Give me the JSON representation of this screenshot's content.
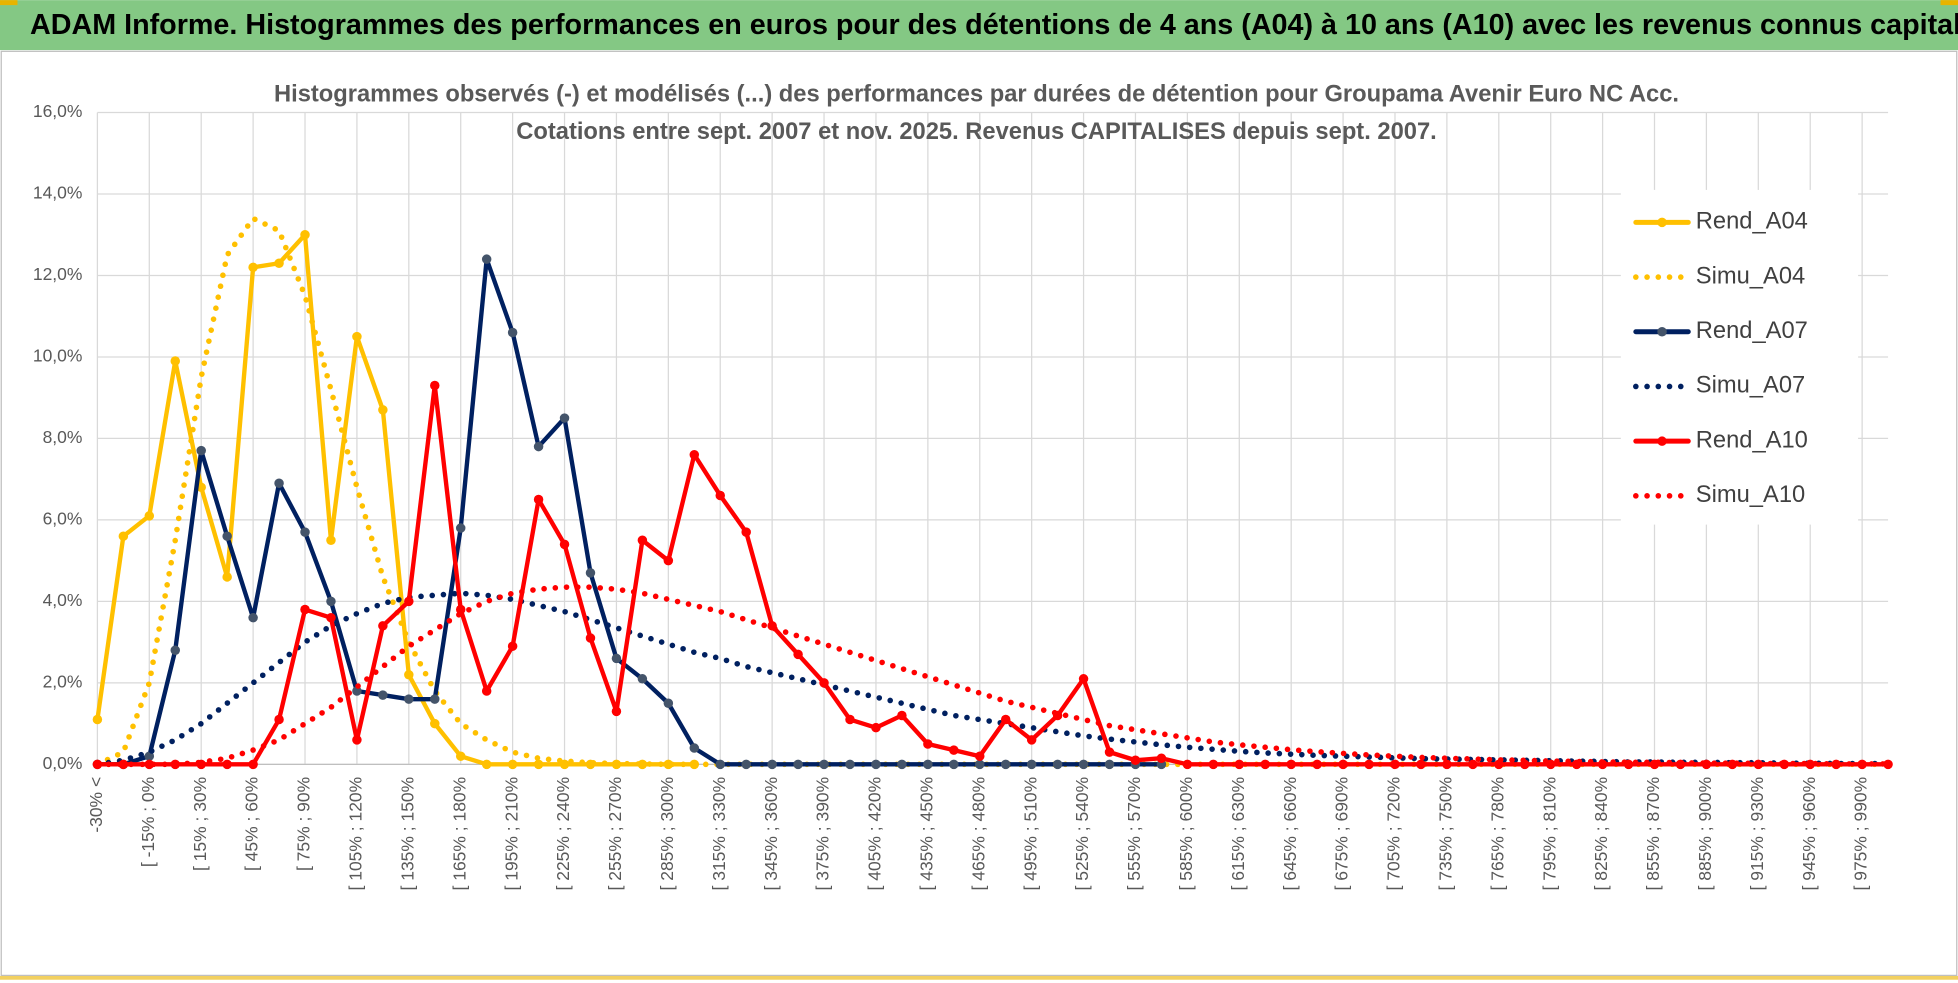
{
  "header": {
    "title": "ADAM Informe. Histogrammes des performances en euros pour des détentions de 4 ans (A04) à 10 ans (A10) avec les revenus connus capitalisés"
  },
  "chart_data": {
    "type": "line",
    "title": "Histogrammes observés (-) et modélisés (...) des performances par durées de détention pour Groupama Avenir Euro NC Acc.",
    "subtitle": "Cotations entre sept. 2007 et nov. 2025. Revenus CAPITALISES depuis sept. 2007.",
    "categories": [
      "-30% <",
      null,
      "[ -15% ; 0%",
      null,
      "[ 15% ; 30%",
      null,
      "[ 45% ; 60%",
      null,
      "[ 75% ; 90%",
      null,
      "[ 105% ; 120%",
      null,
      "[ 135% ; 150%",
      null,
      "[ 165% ; 180%",
      null,
      "[ 195% ; 210%",
      null,
      "[ 225% ; 240%",
      null,
      "[ 255% ; 270%",
      null,
      "[ 285% ; 300%",
      null,
      "[ 315% ; 330%",
      null,
      "[ 345% ; 360%",
      null,
      "[ 375% ; 390%",
      null,
      "[ 405% ; 420%",
      null,
      "[ 435% ; 450%",
      null,
      "[ 465% ; 480%",
      null,
      "[ 495% ; 510%",
      null,
      "[ 525% ; 540%",
      null,
      "[ 555% ; 570%",
      null,
      "[ 585% ; 600%",
      null,
      "[ 615% ; 630%",
      null,
      "[ 645% ; 660%",
      null,
      "[ 675% ; 690%",
      null,
      "[ 705% ; 720%",
      null,
      "[ 735% ; 750%",
      null,
      "[ 765% ; 780%",
      null,
      "[ 795% ; 810%",
      null,
      "[ 825% ; 840%",
      null,
      "[ 855% ; 870%",
      null,
      "[ 885% ; 900%",
      null,
      "[ 915% ; 930%",
      null,
      "[ 945% ; 960%",
      null,
      "[ 975% ; 990%",
      null
    ],
    "series": [
      {
        "name": "Rend_A04",
        "color": "#FFC000",
        "style": "solid",
        "values": [
          1.1,
          5.6,
          6.1,
          9.9,
          6.8,
          4.6,
          12.2,
          12.3,
          13.0,
          5.5,
          10.5,
          8.7,
          2.2,
          1.0,
          0.2,
          0,
          0,
          0,
          0,
          0,
          0,
          0,
          0,
          0,
          null,
          null,
          null,
          null,
          null,
          null,
          null,
          null,
          null,
          null,
          null,
          null,
          null,
          null,
          null,
          null,
          null,
          null,
          null,
          null,
          null,
          null,
          null,
          null,
          null,
          null,
          null,
          null,
          null,
          null,
          null,
          null,
          null,
          null,
          null,
          null,
          null,
          null,
          null,
          null,
          null,
          null,
          null,
          null,
          null,
          null
        ]
      },
      {
        "name": "Simu_A04",
        "color": "#FFC000",
        "style": "dotted",
        "values": [
          0,
          0.3,
          2.0,
          5.5,
          9.5,
          12.5,
          13.4,
          13.1,
          11.5,
          9.2,
          6.8,
          4.6,
          3.0,
          1.8,
          1.0,
          0.6,
          0.3,
          0.15,
          0.08,
          0.04,
          0.02,
          0.01,
          0,
          0,
          0,
          0,
          0,
          0,
          0,
          0,
          0,
          0,
          0,
          0,
          0,
          0,
          0,
          0,
          0,
          0,
          0,
          0,
          0,
          0,
          0,
          0,
          0,
          0,
          0,
          0,
          0,
          0,
          0,
          0,
          0,
          0,
          0,
          0,
          0,
          0,
          0,
          0,
          0,
          0,
          0,
          0,
          0,
          0,
          0,
          0
        ]
      },
      {
        "name": "Rend_A07",
        "color": "#002060",
        "style": "solid",
        "values": [
          0,
          0,
          0.2,
          2.8,
          7.7,
          5.6,
          3.6,
          6.9,
          5.7,
          4.0,
          1.8,
          1.7,
          1.6,
          1.6,
          5.8,
          12.4,
          10.6,
          7.8,
          8.5,
          4.7,
          2.6,
          2.1,
          1.5,
          0.4,
          0,
          0,
          0,
          0,
          0,
          0,
          0,
          0,
          0,
          0,
          0,
          0,
          0,
          0,
          0,
          0,
          0,
          0,
          null,
          null,
          null,
          null,
          null,
          null,
          null,
          null,
          null,
          null,
          null,
          null,
          null,
          null,
          null,
          null,
          null,
          null,
          null,
          null,
          null,
          null,
          null,
          null,
          null,
          null,
          null,
          null
        ]
      },
      {
        "name": "Simu_A07",
        "color": "#002060",
        "style": "dotted",
        "values": [
          0,
          0.1,
          0.3,
          0.6,
          1.0,
          1.5,
          2.0,
          2.5,
          3.0,
          3.4,
          3.7,
          3.95,
          4.1,
          4.15,
          4.2,
          4.15,
          4.05,
          3.9,
          3.75,
          3.55,
          3.35,
          3.15,
          2.95,
          2.75,
          2.6,
          2.4,
          2.25,
          2.1,
          1.95,
          1.8,
          1.65,
          1.5,
          1.35,
          1.2,
          1.1,
          1.0,
          0.9,
          0.8,
          0.7,
          0.62,
          0.55,
          0.48,
          0.42,
          0.37,
          0.32,
          0.28,
          0.25,
          0.22,
          0.2,
          0.18,
          0.16,
          0.14,
          0.13,
          0.12,
          0.11,
          0.1,
          0.09,
          0.08,
          0.07,
          0.06,
          0.06,
          0.05,
          0.05,
          0.04,
          0.04,
          0.03,
          0.03,
          0.02,
          0.02,
          0.02
        ]
      },
      {
        "name": "Rend_A10",
        "color": "#FF0000",
        "style": "solid",
        "values": [
          0,
          0,
          0,
          0,
          0,
          0,
          0,
          1.1,
          3.8,
          3.6,
          0.6,
          3.4,
          4.0,
          9.3,
          3.8,
          1.8,
          2.9,
          6.5,
          5.4,
          3.1,
          1.3,
          5.5,
          5.0,
          7.6,
          6.6,
          5.7,
          3.4,
          2.7,
          2.0,
          1.1,
          0.9,
          1.2,
          0.5,
          0.35,
          0.2,
          1.1,
          0.6,
          1.2,
          2.1,
          0.3,
          0.1,
          0.15,
          0,
          0,
          0,
          0,
          0,
          0,
          0,
          0,
          0,
          0,
          0,
          0,
          0,
          0,
          0,
          0,
          0,
          0,
          0,
          0,
          0,
          0,
          0,
          0,
          0,
          0,
          0,
          0
        ]
      },
      {
        "name": "Simu_A10",
        "color": "#FF0000",
        "style": "dotted",
        "values": [
          0,
          0,
          0,
          0,
          0.05,
          0.15,
          0.35,
          0.6,
          1.0,
          1.4,
          1.9,
          2.4,
          2.9,
          3.3,
          3.7,
          4.0,
          4.2,
          4.3,
          4.35,
          4.35,
          4.3,
          4.2,
          4.05,
          3.9,
          3.75,
          3.55,
          3.35,
          3.15,
          2.95,
          2.75,
          2.55,
          2.35,
          2.15,
          1.95,
          1.75,
          1.55,
          1.4,
          1.25,
          1.1,
          0.95,
          0.85,
          0.75,
          0.65,
          0.55,
          0.48,
          0.42,
          0.36,
          0.31,
          0.27,
          0.23,
          0.2,
          0.17,
          0.15,
          0.13,
          0.11,
          0.1,
          0.08,
          0.07,
          0.06,
          0.05,
          0.05,
          0.04,
          0.03,
          0.03,
          0.02,
          0.02,
          0.02,
          0.01,
          0.01,
          0.01
        ]
      }
    ],
    "ylim": [
      0,
      16
    ],
    "yticks": [
      {
        "value": 0,
        "label": "0,0%"
      },
      {
        "value": 2,
        "label": "2,0%"
      },
      {
        "value": 4,
        "label": "4,0%"
      },
      {
        "value": 6,
        "label": "6,0%"
      },
      {
        "value": 8,
        "label": "8,0%"
      },
      {
        "value": 10,
        "label": "10,0%"
      },
      {
        "value": 12,
        "label": "12,0%"
      },
      {
        "value": 14,
        "label": "14,0%"
      },
      {
        "value": 16,
        "label": "16,0%"
      }
    ],
    "grid": true,
    "legend": "upper right"
  }
}
